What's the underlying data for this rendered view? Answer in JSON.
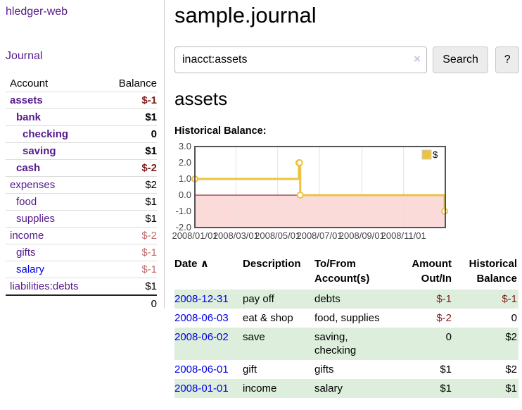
{
  "app": {
    "title": "hledger-web"
  },
  "sidebar": {
    "journal_link": "Journal",
    "header": {
      "account": "Account",
      "balance": "Balance"
    },
    "accounts": [
      {
        "name": "assets",
        "depth": 1,
        "balance": "$-1",
        "bold": true,
        "neg": "strong",
        "link": "purple"
      },
      {
        "name": "bank",
        "depth": 2,
        "balance": "$1",
        "bold": true,
        "neg": "none",
        "link": "purple"
      },
      {
        "name": "checking",
        "depth": 3,
        "balance": "0",
        "bold": true,
        "neg": "none",
        "link": "purple"
      },
      {
        "name": "saving",
        "depth": 3,
        "balance": "$1",
        "bold": true,
        "neg": "none",
        "link": "purple"
      },
      {
        "name": "cash",
        "depth": 2,
        "balance": "$-2",
        "bold": true,
        "neg": "strong",
        "link": "purple"
      },
      {
        "name": "expenses",
        "depth": 1,
        "balance": "$2",
        "bold": false,
        "neg": "none",
        "link": "purple"
      },
      {
        "name": "food",
        "depth": 2,
        "balance": "$1",
        "bold": false,
        "neg": "none",
        "link": "purple"
      },
      {
        "name": "supplies",
        "depth": 2,
        "balance": "$1",
        "bold": false,
        "neg": "none",
        "link": "purple"
      },
      {
        "name": "income",
        "depth": 1,
        "balance": "$-2",
        "bold": false,
        "neg": "muted",
        "link": "purple"
      },
      {
        "name": "gifts",
        "depth": 2,
        "balance": "$-1",
        "bold": false,
        "neg": "muted",
        "link": "purple"
      },
      {
        "name": "salary",
        "depth": 2,
        "balance": "$-1",
        "bold": false,
        "neg": "muted",
        "link": "blue"
      },
      {
        "name": "liabilities:debts",
        "depth": 1,
        "balance": "$1",
        "bold": false,
        "neg": "none",
        "link": "purple"
      }
    ],
    "total": "0"
  },
  "header": {
    "title": "sample.journal"
  },
  "search": {
    "value": "inacct:assets",
    "clear_icon": "×",
    "button_label": "Search",
    "help_label": "?"
  },
  "main": {
    "heading": "assets",
    "chart_label": "Historical Balance:"
  },
  "chart_data": {
    "type": "line",
    "step": true,
    "title": "Historical Balance",
    "series": [
      {
        "name": "$",
        "color": "#edc240",
        "points": [
          [
            "2008-01-01",
            1
          ],
          [
            "2008-06-01",
            2
          ],
          [
            "2008-06-02",
            2
          ],
          [
            "2008-06-03",
            0
          ],
          [
            "2008-12-31",
            -1
          ]
        ]
      }
    ],
    "xrange": [
      "2008-01-01",
      "2009-01-01"
    ],
    "ylim": [
      -2,
      3
    ],
    "yticks": [
      "3.0",
      "2.0",
      "1.0",
      "0.0",
      "-1.0",
      "-2.0"
    ],
    "xticks": [
      "2008/01/01",
      "2008/03/01",
      "2008/05/01",
      "2008/07/01",
      "2008/09/01",
      "2008/11/01"
    ],
    "legend": {
      "label": "$",
      "position": "top-right"
    },
    "grid": "vertical-only",
    "negative_region_color": "#fbdada",
    "zero_line_color": "#8b0000",
    "grid_color": "#e2e2e2",
    "border_color": "#545454",
    "tick_color": "#444444"
  },
  "register": {
    "sort_icon": "∧",
    "columns": [
      {
        "lines": [
          "Date"
        ],
        "sorted": true,
        "align": "left"
      },
      {
        "lines": [
          "Description"
        ],
        "align": "left"
      },
      {
        "lines": [
          "To/From",
          "Account(s)"
        ],
        "align": "left"
      },
      {
        "lines": [
          "Amount",
          "Out/In"
        ],
        "align": "right"
      },
      {
        "lines": [
          "Historical",
          "Balance"
        ],
        "align": "right"
      }
    ],
    "rows": [
      {
        "date": "2008-12-31",
        "description": "pay off",
        "accounts": [
          "debts"
        ],
        "amount": "$-1",
        "amount_neg": true,
        "balance": "$-1",
        "balance_neg": true
      },
      {
        "date": "2008-06-03",
        "description": "eat & shop",
        "accounts": [
          "food, supplies"
        ],
        "amount": "$-2",
        "amount_neg": true,
        "balance": "0",
        "balance_neg": false
      },
      {
        "date": "2008-06-02",
        "description": "save",
        "accounts": [
          "saving,",
          "checking"
        ],
        "amount": "0",
        "amount_neg": false,
        "balance": "$2",
        "balance_neg": false
      },
      {
        "date": "2008-06-01",
        "description": "gift",
        "accounts": [
          "gifts"
        ],
        "amount": "$1",
        "amount_neg": false,
        "balance": "$2",
        "balance_neg": false
      },
      {
        "date": "2008-01-01",
        "description": "income",
        "accounts": [
          "salary"
        ],
        "amount": "$1",
        "amount_neg": false,
        "balance": "$1",
        "balance_neg": false
      }
    ]
  },
  "colors": {
    "link_purple": "#551b8b",
    "link_blue": "#0000e6",
    "negative_strong": "#801b1b",
    "negative_muted": "#c26d6d",
    "row_stripe_green": "#ddeedd",
    "series_gold": "#edc240"
  }
}
